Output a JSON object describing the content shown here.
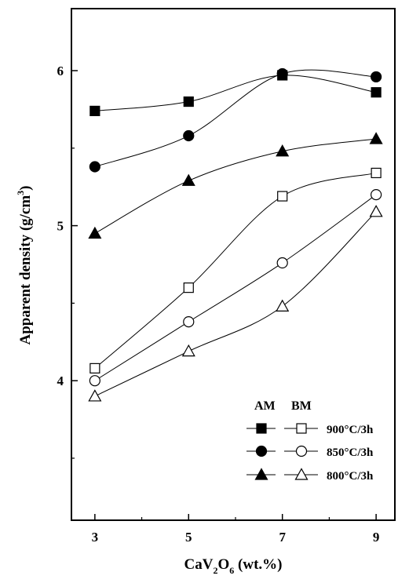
{
  "chart_data": {
    "type": "scatter",
    "x_ticks": [
      "3",
      "5",
      "7",
      "9"
    ],
    "y_ticks": [
      "4",
      "5",
      "6"
    ],
    "xlim": [
      2.5,
      9.4
    ],
    "ylim": [
      3.1,
      6.4
    ],
    "xlabel": {
      "main": "CaV",
      "sub1": "2",
      "mid": "O",
      "sub2": "6",
      "tail": " (wt.%)"
    },
    "ylabel": {
      "main": "Apparent density (g/cm",
      "sup": "3",
      "tail": ")"
    },
    "legend": {
      "position": "bottom-right",
      "header_am": "AM",
      "header_bm": "BM",
      "entries": [
        "900°C/3h",
        "850°C/3h",
        "800°C/3h"
      ]
    },
    "series": [
      {
        "process": "AM",
        "condition": "900°C/3h",
        "marker": "square",
        "filled": true,
        "x": [
          3,
          5,
          7,
          9
        ],
        "y": [
          5.74,
          5.8,
          5.97,
          5.86
        ]
      },
      {
        "process": "AM",
        "condition": "850°C/3h",
        "marker": "circle",
        "filled": true,
        "x": [
          3,
          5,
          7,
          9
        ],
        "y": [
          5.38,
          5.58,
          5.98,
          5.96
        ]
      },
      {
        "process": "AM",
        "condition": "800°C/3h",
        "marker": "triangle",
        "filled": true,
        "x": [
          3,
          5,
          7,
          9
        ],
        "y": [
          4.95,
          5.29,
          5.48,
          5.56
        ]
      },
      {
        "process": "BM",
        "condition": "900°C/3h",
        "marker": "square",
        "filled": false,
        "x": [
          3,
          5,
          7,
          9
        ],
        "y": [
          4.08,
          4.6,
          5.19,
          5.34
        ]
      },
      {
        "process": "BM",
        "condition": "850°C/3h",
        "marker": "circle",
        "filled": false,
        "x": [
          3,
          5,
          7,
          9
        ],
        "y": [
          4.0,
          4.38,
          4.76,
          5.2
        ]
      },
      {
        "process": "BM",
        "condition": "800°C/3h",
        "marker": "triangle",
        "filled": false,
        "x": [
          3,
          5,
          7,
          9
        ],
        "y": [
          3.9,
          4.19,
          4.48,
          5.09
        ]
      }
    ]
  }
}
